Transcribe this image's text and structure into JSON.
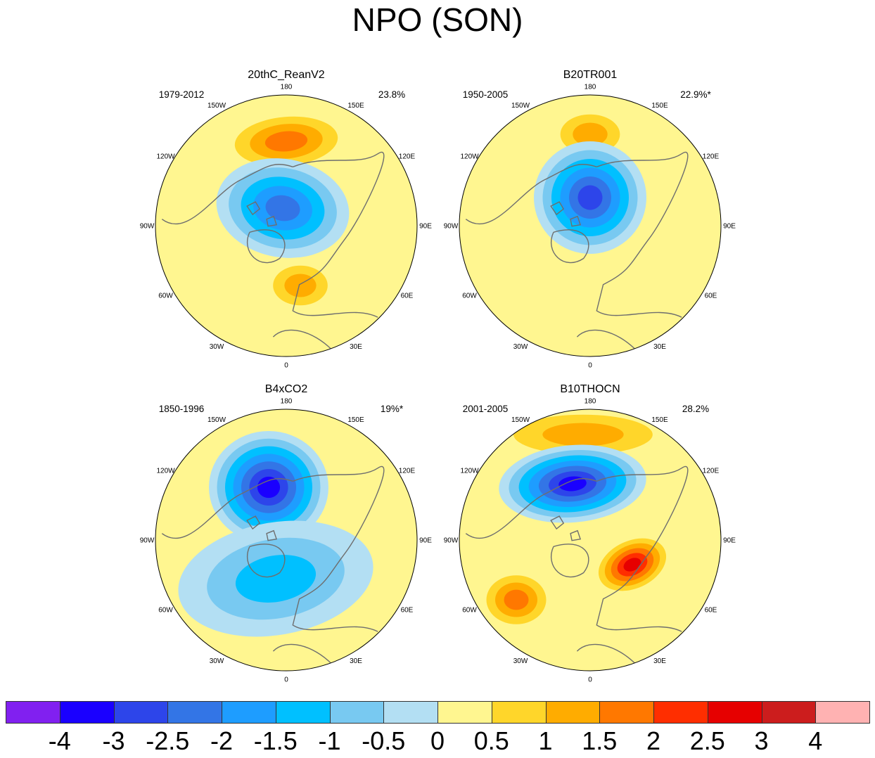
{
  "figure": {
    "title": "NPO (SON)"
  },
  "chart_data": [
    {
      "type": "heatmap",
      "projection": "north-polar-stereographic",
      "title": "20thC_ReanV2",
      "period": "1979-2012",
      "variance": "23.8%",
      "longitude_labels": [
        "180",
        "150E",
        "120E",
        "90E",
        "60E",
        "30E",
        "0",
        "30W",
        "60W",
        "90W",
        "120W",
        "150W"
      ],
      "anomalies": [
        {
          "sign": "positive",
          "region": "North Pacific",
          "peak": 1.5
        },
        {
          "sign": "negative",
          "region": "Arctic / Greenland",
          "peak": -2.0
        },
        {
          "sign": "positive",
          "region": "Europe / Scandinavia",
          "peak": 1.0
        }
      ]
    },
    {
      "type": "heatmap",
      "projection": "north-polar-stereographic",
      "title": "B20TR001",
      "period": "1950-2005",
      "variance": "22.9%*",
      "longitude_labels": [
        "180",
        "150E",
        "120E",
        "90E",
        "60E",
        "30E",
        "0",
        "30W",
        "60W",
        "90W",
        "120W",
        "150W"
      ],
      "anomalies": [
        {
          "sign": "positive",
          "region": "North Pacific",
          "peak": 1.0
        },
        {
          "sign": "negative",
          "region": "Arctic / Alaska",
          "peak": -2.5
        }
      ]
    },
    {
      "type": "heatmap",
      "projection": "north-polar-stereographic",
      "title": "B4xCO2",
      "period": "1850-1996",
      "variance": "19%*",
      "longitude_labels": [
        "180",
        "150E",
        "120E",
        "90E",
        "60E",
        "30E",
        "0",
        "30W",
        "60W",
        "90W",
        "120W",
        "150W"
      ],
      "anomalies": [
        {
          "sign": "negative",
          "region": "Alaska / North Pacific",
          "peak": -3.0
        },
        {
          "sign": "negative",
          "region": "North Atlantic",
          "peak": -1.0
        }
      ]
    },
    {
      "type": "heatmap",
      "projection": "north-polar-stereographic",
      "title": "B10THOCN",
      "period": "2001-2005",
      "variance": "28.2%",
      "longitude_labels": [
        "180",
        "150E",
        "120E",
        "90E",
        "60E",
        "30E",
        "0",
        "30W",
        "60W",
        "90W",
        "120W",
        "150W"
      ],
      "anomalies": [
        {
          "sign": "positive",
          "region": "Far North Pacific",
          "peak": 1.0
        },
        {
          "sign": "negative",
          "region": "Alaska / Siberia",
          "peak": -3.0
        },
        {
          "sign": "positive",
          "region": "Scandinavia",
          "peak": 2.5
        },
        {
          "sign": "positive",
          "region": "North Atlantic",
          "peak": 1.5
        }
      ]
    }
  ],
  "colorbar": {
    "colors": [
      "#8120f0",
      "#1a00ff",
      "#2d45ea",
      "#3375e6",
      "#1e9dff",
      "#00c0ff",
      "#78c9f1",
      "#b3dff3",
      "#fff690",
      "#ffd62a",
      "#ffac00",
      "#ff7800",
      "#ff2e00",
      "#e60000",
      "#cc1d1d",
      "#ffb2b2"
    ],
    "labels": [
      "-4",
      "-3",
      "-2.5",
      "-2",
      "-1.5",
      "-1",
      "-0.5",
      "0",
      "0.5",
      "1",
      "1.5",
      "2",
      "2.5",
      "3",
      "4"
    ]
  }
}
